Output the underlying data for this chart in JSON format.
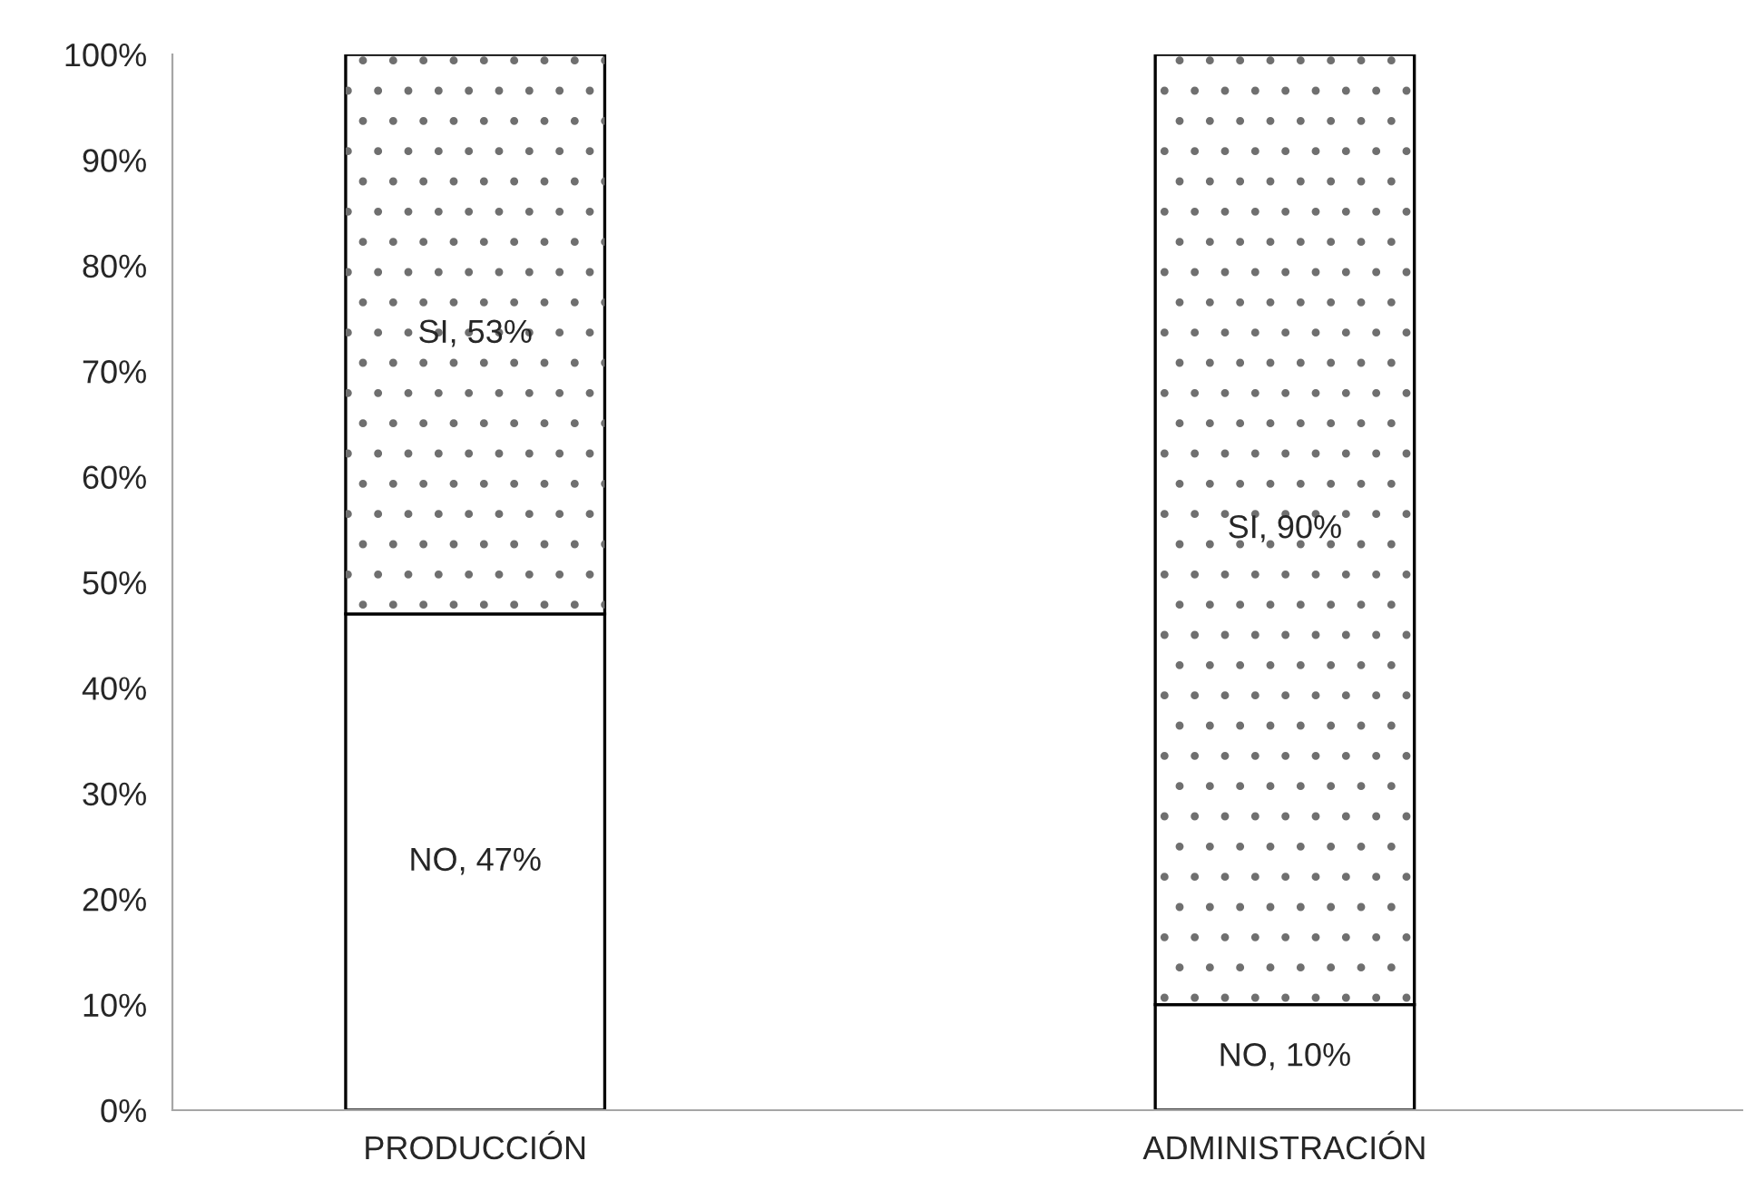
{
  "chart_data": {
    "type": "bar",
    "stacked": true,
    "categories": [
      "PRODUCCIÓN",
      "ADMINISTRACIÓN"
    ],
    "series": [
      {
        "color": "#ffffff",
        "values": [
          47,
          10
        ],
        "value_labels": [
          "NO, 47%",
          "NO, 10%"
        ]
      },
      {
        "color": "#ffffff",
        "values": [
          53,
          90
        ],
        "value_labels": [
          "SI, 53%",
          "SI, 90%"
        ]
      }
    ],
    "ylim": [
      0,
      100
    ],
    "yticks": [
      {
        "value": 0,
        "label": "0%"
      },
      {
        "value": 10,
        "label": "10%"
      },
      {
        "value": 20,
        "label": "20%"
      },
      {
        "value": 30,
        "label": "30%"
      },
      {
        "value": 40,
        "label": "40%"
      },
      {
        "value": 50,
        "label": "50%"
      },
      {
        "value": 60,
        "label": "60%"
      },
      {
        "value": 70,
        "label": "70%"
      },
      {
        "value": 80,
        "label": "80%"
      },
      {
        "value": 90,
        "label": "90%"
      },
      {
        "value": 100,
        "label": "100%"
      }
    ],
    "grid": false,
    "legend": false
  }
}
